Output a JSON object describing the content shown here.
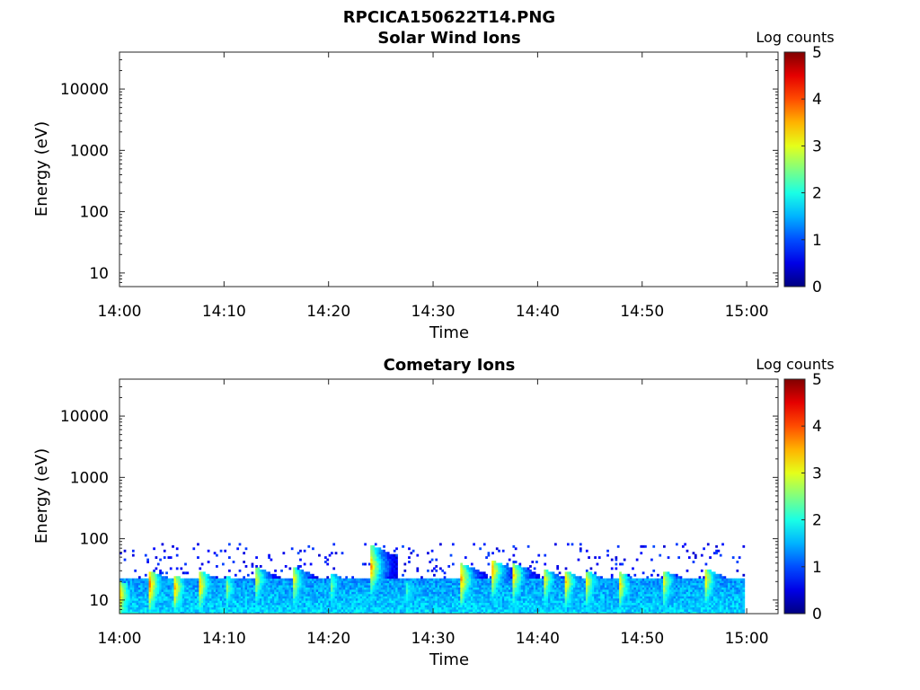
{
  "figure": {
    "title": "RPCICA150622T14.PNG"
  },
  "chart_data": [
    {
      "type": "heatmap",
      "title": "Solar Wind Ions",
      "xlabel": "Time",
      "ylabel": "Energy (eV)",
      "x_ticks": [
        "14:00",
        "14:10",
        "14:20",
        "14:30",
        "14:40",
        "14:50",
        "15:00"
      ],
      "xlim_minutes": [
        0,
        63
      ],
      "y_scale": "log",
      "y_ticks": [
        "10",
        "100",
        "1000",
        "10000"
      ],
      "ylim": [
        6,
        40000
      ],
      "colorbar": {
        "label": "Log counts",
        "ticks": [
          "0",
          "1",
          "2",
          "3",
          "4",
          "5"
        ],
        "range": [
          0,
          5
        ],
        "colormap": "jet"
      },
      "spectrogram_pulses": [],
      "data_end_minute": 0,
      "grid": false
    },
    {
      "type": "heatmap",
      "title": "Cometary Ions",
      "xlabel": "Time",
      "ylabel": "Energy (eV)",
      "x_ticks": [
        "14:00",
        "14:10",
        "14:20",
        "14:30",
        "14:40",
        "14:50",
        "15:00"
      ],
      "xlim_minutes": [
        0,
        63
      ],
      "y_scale": "log",
      "y_ticks": [
        "10",
        "100",
        "1000",
        "10000"
      ],
      "ylim": [
        6,
        40000
      ],
      "colorbar": {
        "label": "Log counts",
        "ticks": [
          "0",
          "1",
          "2",
          "3",
          "4",
          "5"
        ],
        "range": [
          0,
          5
        ],
        "colormap": "jet"
      },
      "background_band_eV": [
        6,
        22
      ],
      "background_log_counts": 1.7,
      "spectrogram_pulses": [
        {
          "start_minute": 0.0,
          "peak_log_counts": 3.4,
          "peak_energy_eV": 12,
          "top_energy_eV": 20
        },
        {
          "start_minute": 2.8,
          "peak_log_counts": 3.8,
          "peak_energy_eV": 18,
          "top_energy_eV": 30
        },
        {
          "start_minute": 5.2,
          "peak_log_counts": 3.5,
          "peak_energy_eV": 16,
          "top_energy_eV": 25
        },
        {
          "start_minute": 7.5,
          "peak_log_counts": 3.7,
          "peak_energy_eV": 18,
          "top_energy_eV": 30
        },
        {
          "start_minute": 10.0,
          "peak_log_counts": 3.1,
          "peak_energy_eV": 16,
          "top_energy_eV": 25
        },
        {
          "start_minute": 12.8,
          "peak_log_counts": 3.5,
          "peak_energy_eV": 22,
          "top_energy_eV": 35
        },
        {
          "start_minute": 16.5,
          "peak_log_counts": 3.3,
          "peak_energy_eV": 22,
          "top_energy_eV": 35
        },
        {
          "start_minute": 20.0,
          "peak_log_counts": 2.8,
          "peak_energy_eV": 18,
          "top_energy_eV": 28
        },
        {
          "start_minute": 23.8,
          "peak_log_counts": 4.2,
          "peak_energy_eV": 35,
          "top_energy_eV": 80
        },
        {
          "start_minute": 27.2,
          "peak_log_counts": 2.6,
          "peak_energy_eV": 14,
          "top_energy_eV": 22
        },
        {
          "start_minute": 32.5,
          "peak_log_counts": 3.9,
          "peak_energy_eV": 22,
          "top_energy_eV": 40
        },
        {
          "start_minute": 35.5,
          "peak_log_counts": 3.8,
          "peak_energy_eV": 30,
          "top_energy_eV": 45
        },
        {
          "start_minute": 37.5,
          "peak_log_counts": 3.6,
          "peak_energy_eV": 25,
          "top_energy_eV": 40
        },
        {
          "start_minute": 40.5,
          "peak_log_counts": 3.3,
          "peak_energy_eV": 22,
          "top_energy_eV": 32
        },
        {
          "start_minute": 42.5,
          "peak_log_counts": 3.6,
          "peak_energy_eV": 20,
          "top_energy_eV": 30
        },
        {
          "start_minute": 44.5,
          "peak_log_counts": 3.4,
          "peak_energy_eV": 20,
          "top_energy_eV": 30
        },
        {
          "start_minute": 47.8,
          "peak_log_counts": 3.2,
          "peak_energy_eV": 18,
          "top_energy_eV": 28
        },
        {
          "start_minute": 52.0,
          "peak_log_counts": 3.0,
          "peak_energy_eV": 20,
          "top_energy_eV": 30
        },
        {
          "start_minute": 56.0,
          "peak_log_counts": 3.2,
          "peak_energy_eV": 22,
          "top_energy_eV": 32
        }
      ],
      "data_end_minute": 59.8,
      "grid": false
    }
  ]
}
